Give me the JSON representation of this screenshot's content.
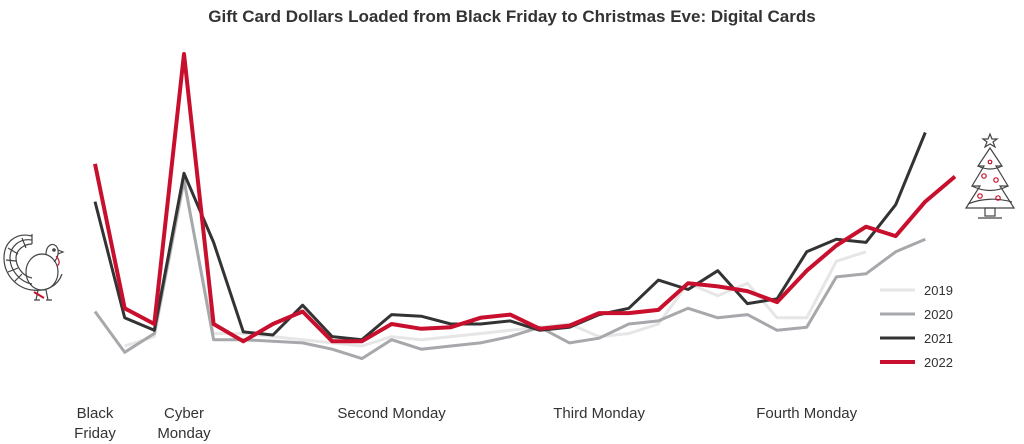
{
  "chart_data": {
    "type": "line",
    "title": "Gift Card Dollars Loaded from Black Friday to Christmas Eve: Digital Cards",
    "xlabel": "",
    "ylabel": "",
    "x_tick_labels": [
      {
        "day": 1,
        "lines": [
          "Black",
          "Friday"
        ]
      },
      {
        "day": 4,
        "lines": [
          "Cyber",
          "Monday"
        ]
      },
      {
        "day": 11,
        "lines": [
          "Second Monday"
        ]
      },
      {
        "day": 18,
        "lines": [
          "Third Monday"
        ]
      },
      {
        "day": 25,
        "lines": [
          "Fourth Monday"
        ]
      }
    ],
    "xlim": [
      1,
      30
    ],
    "ylim": [
      0,
      100
    ],
    "grid": false,
    "legend_position": "right",
    "series": [
      {
        "name": "2019",
        "color": "#e6e6e6",
        "values": [
          null,
          7,
          10,
          59,
          11,
          11,
          10,
          9,
          8,
          7,
          10,
          9,
          10,
          11,
          12,
          13,
          14,
          10,
          11,
          14,
          27,
          23,
          27,
          16,
          16,
          34,
          37,
          null,
          null,
          null
        ]
      },
      {
        "name": "2020",
        "color": "#a6a8ab",
        "values": [
          18,
          5,
          11,
          60,
          9,
          9,
          8.5,
          8,
          6,
          3,
          9,
          6,
          7,
          8,
          10,
          13,
          8,
          9.5,
          14,
          15,
          19,
          16,
          17,
          12,
          13,
          29,
          30,
          37,
          41,
          null
        ]
      },
      {
        "name": "2021",
        "color": "#333333",
        "values": [
          53,
          16,
          12,
          62,
          40,
          11.5,
          10.5,
          20,
          10,
          9,
          17,
          16.5,
          14,
          14,
          15,
          12,
          13,
          17,
          19,
          28,
          25,
          31,
          20.5,
          22,
          37,
          41,
          40,
          52,
          75,
          null
        ]
      },
      {
        "name": "2022",
        "color": "#c8102e",
        "values": [
          65,
          19,
          14,
          100,
          14,
          8.5,
          14,
          18,
          8.5,
          8.5,
          14,
          12.5,
          13,
          16,
          17,
          12.5,
          13.5,
          17.5,
          17.5,
          18.5,
          27,
          26,
          24.5,
          21,
          31,
          39,
          45,
          42,
          53,
          61
        ]
      }
    ]
  },
  "decor": {
    "left_icon": "turkey-icon",
    "right_icon": "christmas-tree-icon"
  }
}
